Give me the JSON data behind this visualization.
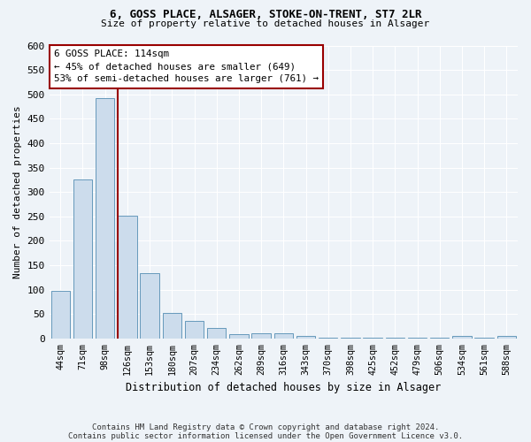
{
  "title_line1": "6, GOSS PLACE, ALSAGER, STOKE-ON-TRENT, ST7 2LR",
  "title_line2": "Size of property relative to detached houses in Alsager",
  "xlabel": "Distribution of detached houses by size in Alsager",
  "ylabel": "Number of detached properties",
  "bar_labels": [
    "44sqm",
    "71sqm",
    "98sqm",
    "126sqm",
    "153sqm",
    "180sqm",
    "207sqm",
    "234sqm",
    "262sqm",
    "289sqm",
    "316sqm",
    "343sqm",
    "370sqm",
    "398sqm",
    "425sqm",
    "452sqm",
    "479sqm",
    "506sqm",
    "534sqm",
    "561sqm",
    "588sqm"
  ],
  "bar_heights": [
    98,
    325,
    493,
    252,
    133,
    52,
    36,
    22,
    8,
    10,
    10,
    5,
    2,
    2,
    2,
    2,
    2,
    2,
    5,
    2,
    5
  ],
  "bar_color": "#ccdcec",
  "bar_edge_color": "#6699bb",
  "bar_width": 0.85,
  "vline_x": 2.58,
  "vline_color": "#990000",
  "annotation_line1": "6 GOSS PLACE: 114sqm",
  "annotation_line2": "← 45% of detached houses are smaller (649)",
  "annotation_line3": "53% of semi-detached houses are larger (761) →",
  "annotation_box_color": "white",
  "annotation_box_edge": "#990000",
  "ylim": [
    0,
    600
  ],
  "yticks": [
    0,
    50,
    100,
    150,
    200,
    250,
    300,
    350,
    400,
    450,
    500,
    550,
    600
  ],
  "footnote_line1": "Contains HM Land Registry data © Crown copyright and database right 2024.",
  "footnote_line2": "Contains public sector information licensed under the Open Government Licence v3.0.",
  "bg_color": "#eef3f8",
  "grid_color": "white"
}
